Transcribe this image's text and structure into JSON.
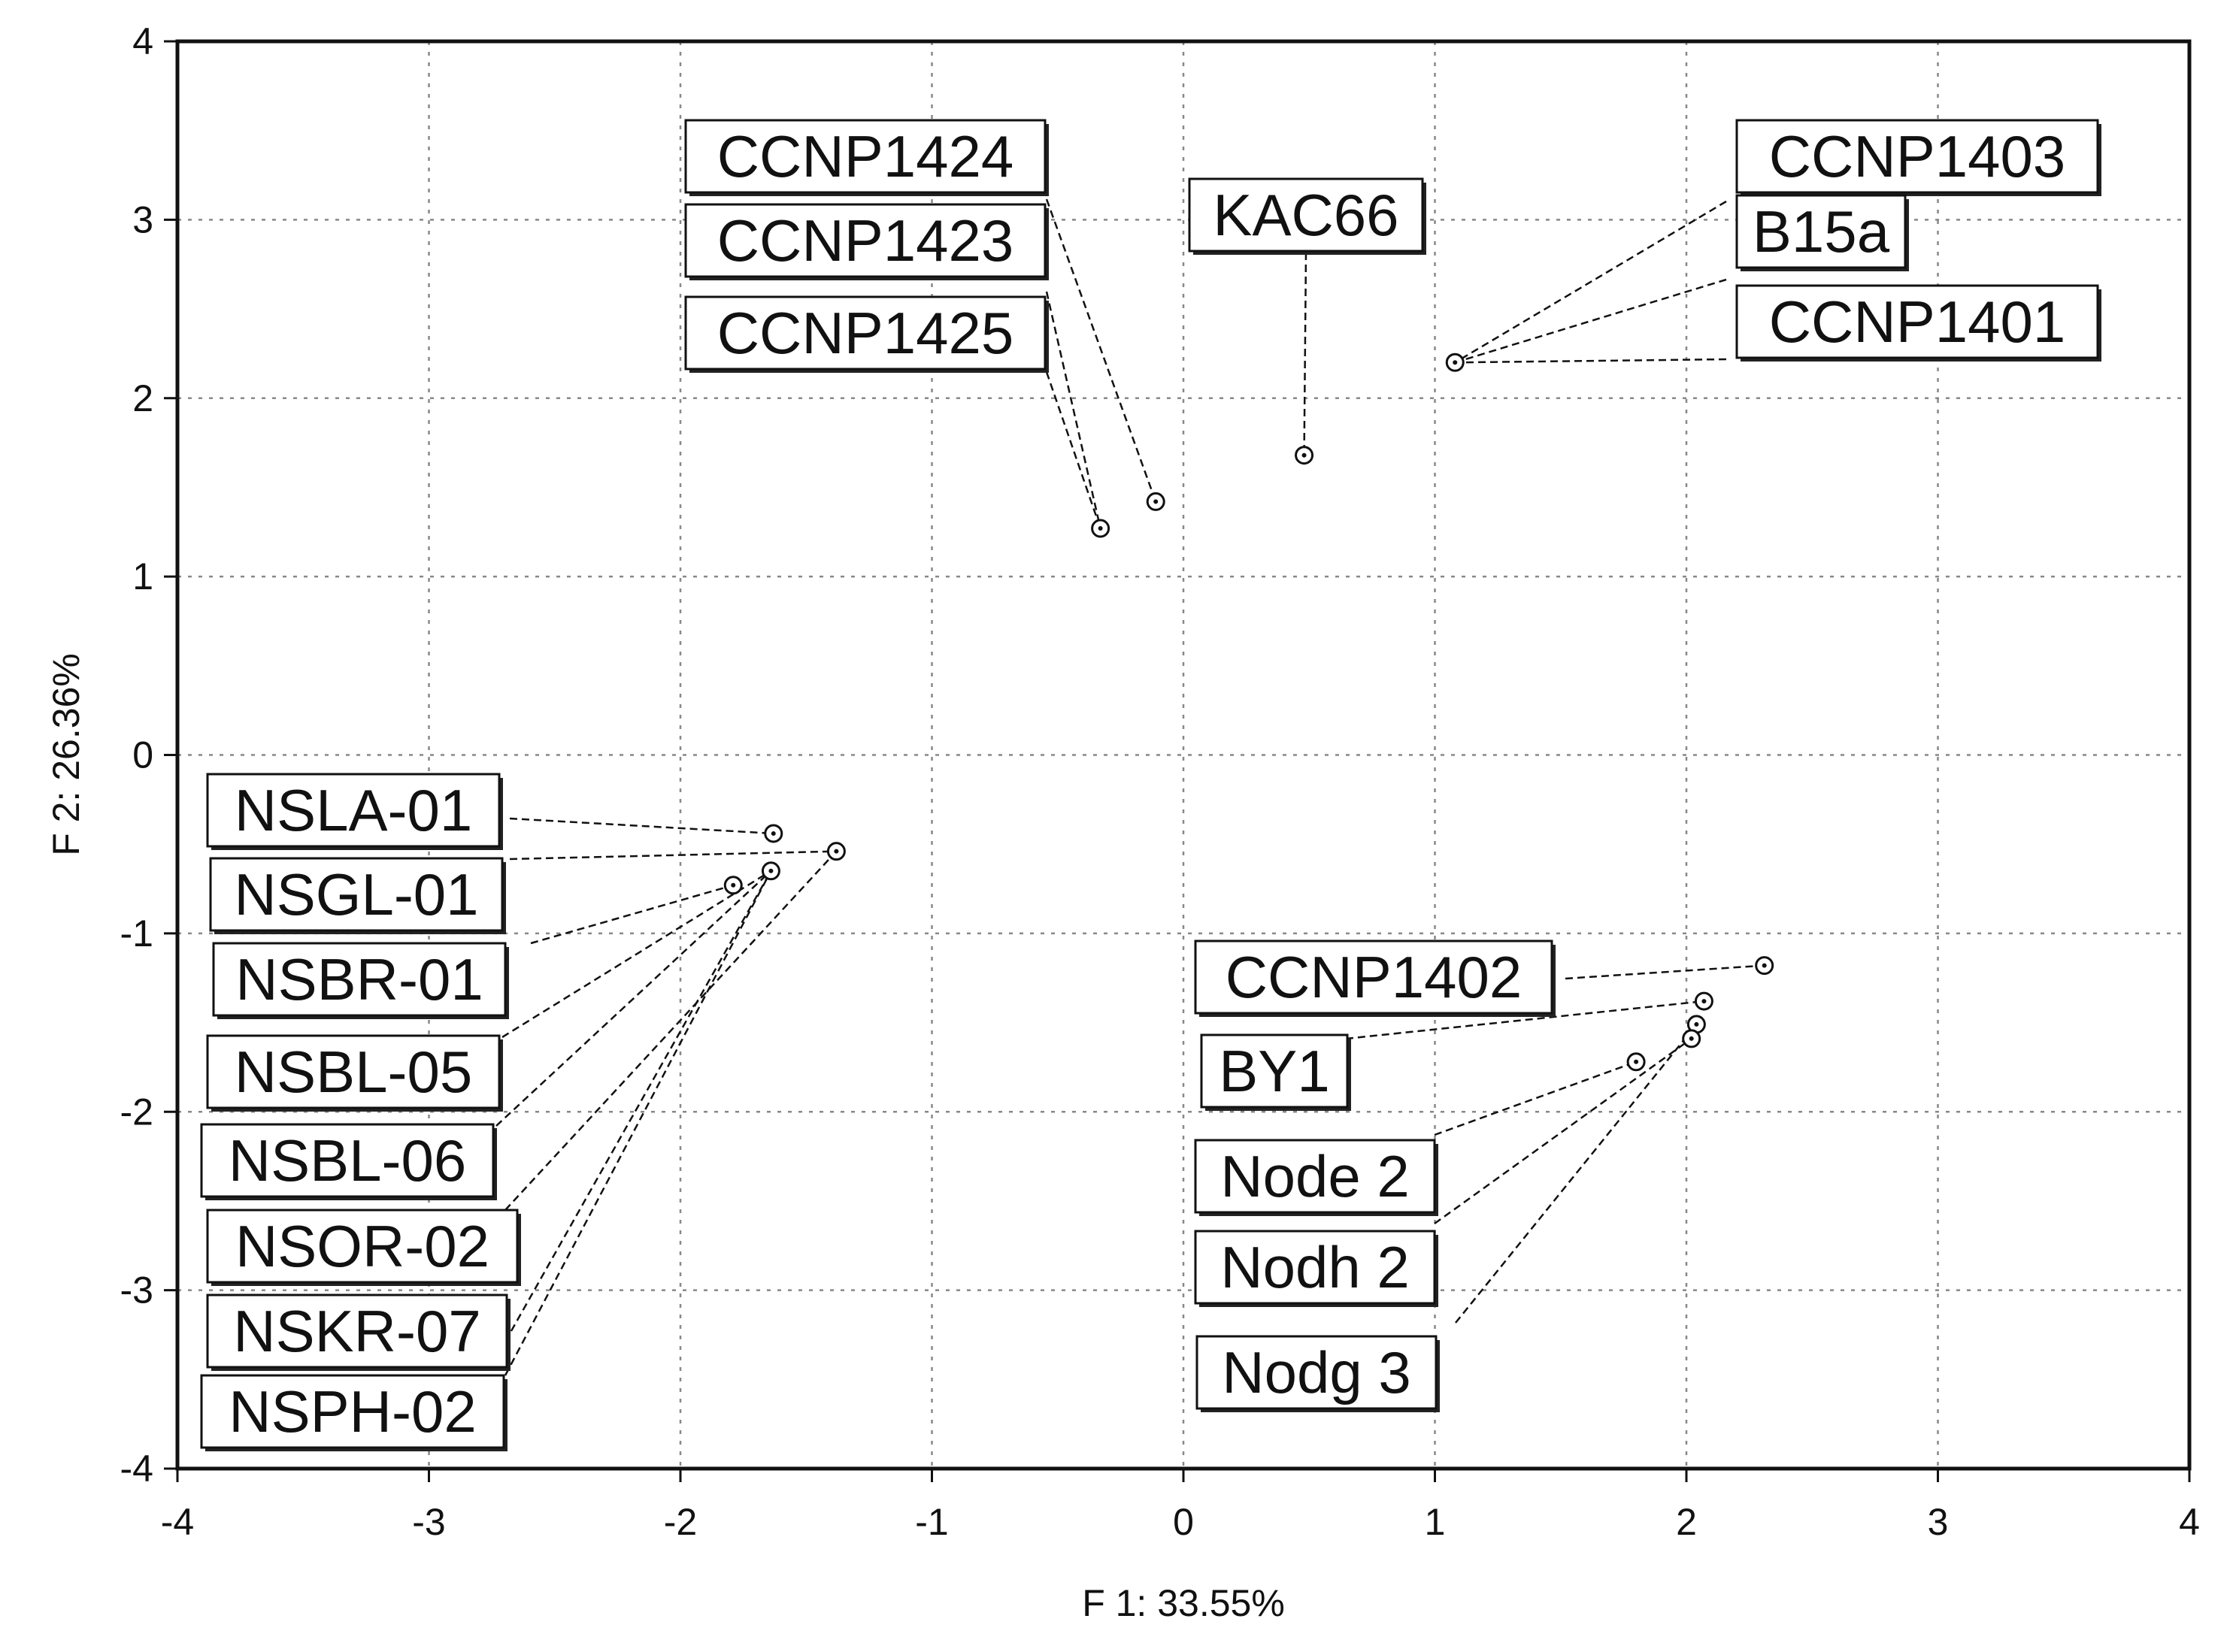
{
  "chart_data": {
    "type": "scatter",
    "xlabel": "F 1: 33.55%",
    "ylabel": "F 2: 26.36%",
    "xlim": [
      -4,
      4
    ],
    "ylim": [
      -4,
      4
    ],
    "xticks": [
      "-4",
      "-3",
      "-2",
      "-1",
      "0",
      "1",
      "2",
      "3",
      "4"
    ],
    "yticks": [
      "4",
      "3",
      "2",
      "1",
      "0",
      "-1",
      "-2",
      "-3",
      "-4"
    ],
    "grid": true,
    "points": [
      {
        "x": 1.08,
        "y": 2.2
      },
      {
        "x": 0.48,
        "y": 1.68
      },
      {
        "x": -0.11,
        "y": 1.42
      },
      {
        "x": -0.33,
        "y": 1.27
      },
      {
        "x": -1.63,
        "y": -0.44
      },
      {
        "x": -1.38,
        "y": -0.54
      },
      {
        "x": -1.64,
        "y": -0.65
      },
      {
        "x": -1.79,
        "y": -0.73
      },
      {
        "x": 2.31,
        "y": -1.18
      },
      {
        "x": 2.07,
        "y": -1.38
      },
      {
        "x": 2.04,
        "y": -1.51
      },
      {
        "x": 2.02,
        "y": -1.59
      },
      {
        "x": 1.8,
        "y": -1.72
      }
    ],
    "labels": [
      {
        "text": "CCNP1424",
        "point": 2
      },
      {
        "text": "CCNP1423",
        "point": 3
      },
      {
        "text": "CCNP1425",
        "point": 3
      },
      {
        "text": "KAC66",
        "point": 1
      },
      {
        "text": "CCNP1403",
        "point": 0
      },
      {
        "text": "B15a",
        "point": 0
      },
      {
        "text": "CCNP1401",
        "point": 0
      },
      {
        "text": "NSLA-01",
        "point": 4
      },
      {
        "text": "NSGL-01",
        "point": 5
      },
      {
        "text": "NSBR-01",
        "point": 7
      },
      {
        "text": "NSBL-05",
        "point": 6
      },
      {
        "text": "NSBL-06",
        "point": 6
      },
      {
        "text": "NSOR-02",
        "point": 5
      },
      {
        "text": "NSKR-07",
        "point": 6
      },
      {
        "text": "NSPH-02",
        "point": 6
      },
      {
        "text": "CCNP1402",
        "point": 8
      },
      {
        "text": "BY1",
        "point": 9
      },
      {
        "text": "Node 2",
        "point": 12
      },
      {
        "text": "Nodh 2",
        "point": 11
      },
      {
        "text": "Nodg 3",
        "point": 10
      }
    ]
  }
}
